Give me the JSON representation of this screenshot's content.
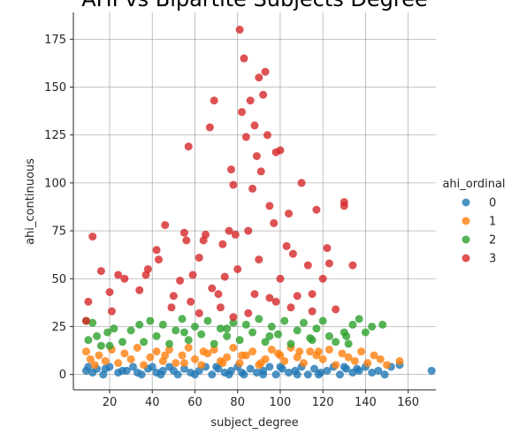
{
  "chart_data": {
    "type": "scatter",
    "title": "AHI vs Bipartite Subjects Degree",
    "xlabel": "subject_degree",
    "ylabel": "ahi_continuous",
    "xlim": [
      3,
      173
    ],
    "ylim": [
      -8,
      189
    ],
    "x_ticks": [
      20,
      40,
      60,
      80,
      100,
      120,
      140,
      160
    ],
    "y_ticks": [
      0,
      25,
      50,
      75,
      100,
      125,
      150,
      175
    ],
    "grid": true,
    "legend": {
      "title": "ahi_ordinal",
      "placement": "right",
      "entries": [
        "0",
        "1",
        "2",
        "3"
      ]
    },
    "colors": [
      "#1f77b4",
      "#ff7f0e",
      "#2ca02c",
      "#d62728"
    ],
    "series": [
      {
        "name": "0",
        "points": [
          [
            9,
            2
          ],
          [
            12,
            1
          ],
          [
            14,
            3
          ],
          [
            17,
            0
          ],
          [
            20,
            4
          ],
          [
            24,
            1
          ],
          [
            28,
            2
          ],
          [
            31,
            4
          ],
          [
            35,
            0
          ],
          [
            38,
            3
          ],
          [
            42,
            1
          ],
          [
            45,
            2
          ],
          [
            48,
            4
          ],
          [
            52,
            0
          ],
          [
            55,
            3
          ],
          [
            58,
            1
          ],
          [
            62,
            2
          ],
          [
            65,
            4
          ],
          [
            68,
            0
          ],
          [
            71,
            3
          ],
          [
            74,
            1
          ],
          [
            77,
            2
          ],
          [
            80,
            4
          ],
          [
            83,
            0
          ],
          [
            86,
            3
          ],
          [
            89,
            1
          ],
          [
            92,
            2
          ],
          [
            95,
            4
          ],
          [
            98,
            0
          ],
          [
            101,
            3
          ],
          [
            104,
            1
          ],
          [
            107,
            2
          ],
          [
            110,
            4
          ],
          [
            113,
            0
          ],
          [
            116,
            3
          ],
          [
            119,
            1
          ],
          [
            122,
            2
          ],
          [
            125,
            4
          ],
          [
            128,
            0
          ],
          [
            131,
            3
          ],
          [
            134,
            1
          ],
          [
            137,
            2
          ],
          [
            140,
            4
          ],
          [
            143,
            1
          ],
          [
            146,
            2
          ],
          [
            149,
            0
          ],
          [
            152,
            4
          ],
          [
            156,
            5
          ],
          [
            171,
            2
          ],
          [
            44,
            0
          ],
          [
            60,
            0
          ],
          [
            76,
            0
          ],
          [
            92,
            0
          ],
          [
            108,
            0
          ],
          [
            40,
            4
          ],
          [
            70,
            4
          ],
          [
            100,
            4
          ],
          [
            130,
            4
          ],
          [
            10,
            4
          ],
          [
            18,
            3
          ],
          [
            26,
            2
          ],
          [
            33,
            1
          ],
          [
            50,
            2
          ],
          [
            82,
            1
          ],
          [
            118,
            0
          ],
          [
            136,
            3
          ]
        ]
      },
      {
        "name": "1",
        "points": [
          [
            9,
            12
          ],
          [
            11,
            8
          ],
          [
            13,
            5
          ],
          [
            15,
            10
          ],
          [
            18,
            7
          ],
          [
            21,
            13
          ],
          [
            24,
            6
          ],
          [
            27,
            11
          ],
          [
            30,
            8
          ],
          [
            33,
            14
          ],
          [
            36,
            5
          ],
          [
            39,
            9
          ],
          [
            42,
            12
          ],
          [
            45,
            7
          ],
          [
            48,
            13
          ],
          [
            51,
            6
          ],
          [
            54,
            10
          ],
          [
            57,
            14
          ],
          [
            60,
            8
          ],
          [
            63,
            5
          ],
          [
            66,
            11
          ],
          [
            69,
            13
          ],
          [
            72,
            7
          ],
          [
            75,
            9
          ],
          [
            78,
            14
          ],
          [
            81,
            6
          ],
          [
            84,
            10
          ],
          [
            87,
            12
          ],
          [
            90,
            5
          ],
          [
            93,
            8
          ],
          [
            96,
            13
          ],
          [
            99,
            11
          ],
          [
            102,
            7
          ],
          [
            105,
            14
          ],
          [
            108,
            9
          ],
          [
            111,
            6
          ],
          [
            114,
            12
          ],
          [
            117,
            10
          ],
          [
            120,
            8
          ],
          [
            123,
            13
          ],
          [
            126,
            5
          ],
          [
            129,
            11
          ],
          [
            132,
            9
          ],
          [
            135,
            7
          ],
          [
            138,
            12
          ],
          [
            141,
            6
          ],
          [
            144,
            10
          ],
          [
            147,
            8
          ],
          [
            150,
            5
          ],
          [
            156,
            7
          ],
          [
            46,
            10
          ],
          [
            64,
            12
          ],
          [
            82,
            10
          ],
          [
            100,
            10
          ],
          [
            118,
            12
          ],
          [
            55,
            6
          ],
          [
            73,
            6
          ],
          [
            91,
            6
          ],
          [
            109,
            12
          ]
        ]
      },
      {
        "name": "2",
        "points": [
          [
            9,
            28
          ],
          [
            10,
            18
          ],
          [
            12,
            27
          ],
          [
            14,
            20
          ],
          [
            16,
            15
          ],
          [
            19,
            22
          ],
          [
            22,
            24
          ],
          [
            26,
            17
          ],
          [
            30,
            23
          ],
          [
            34,
            26
          ],
          [
            36,
            17
          ],
          [
            39,
            28
          ],
          [
            42,
            20
          ],
          [
            45,
            26
          ],
          [
            48,
            16
          ],
          [
            51,
            23
          ],
          [
            54,
            29
          ],
          [
            57,
            18
          ],
          [
            60,
            25
          ],
          [
            63,
            21
          ],
          [
            66,
            28
          ],
          [
            69,
            16
          ],
          [
            72,
            24
          ],
          [
            75,
            20
          ],
          [
            78,
            27
          ],
          [
            81,
            18
          ],
          [
            84,
            26
          ],
          [
            87,
            22
          ],
          [
            90,
            29
          ],
          [
            93,
            17
          ],
          [
            96,
            25
          ],
          [
            99,
            21
          ],
          [
            102,
            28
          ],
          [
            105,
            16
          ],
          [
            108,
            23
          ],
          [
            111,
            27
          ],
          [
            114,
            19
          ],
          [
            117,
            24
          ],
          [
            120,
            28
          ],
          [
            123,
            20
          ],
          [
            126,
            17
          ],
          [
            130,
            22
          ],
          [
            134,
            26
          ],
          [
            137,
            29
          ],
          [
            140,
            22
          ],
          [
            143,
            25
          ],
          [
            148,
            26
          ],
          [
            20,
            15
          ],
          [
            132,
            16
          ],
          [
            131,
            20
          ],
          [
            55,
            22
          ],
          [
            75,
            24
          ],
          [
            95,
            20
          ],
          [
            115,
            18
          ]
        ]
      },
      {
        "name": "3",
        "points": [
          [
            12,
            72
          ],
          [
            10,
            38
          ],
          [
            9,
            28
          ],
          [
            16,
            54
          ],
          [
            20,
            43
          ],
          [
            21,
            33
          ],
          [
            24,
            52
          ],
          [
            27,
            50
          ],
          [
            34,
            44
          ],
          [
            37,
            52
          ],
          [
            38,
            55
          ],
          [
            42,
            65
          ],
          [
            43,
            60
          ],
          [
            46,
            78
          ],
          [
            49,
            35
          ],
          [
            50,
            41
          ],
          [
            53,
            49
          ],
          [
            55,
            74
          ],
          [
            56,
            70
          ],
          [
            57,
            119
          ],
          [
            59,
            52
          ],
          [
            62,
            61
          ],
          [
            64,
            70
          ],
          [
            65,
            73
          ],
          [
            67,
            129
          ],
          [
            69,
            143
          ],
          [
            71,
            42
          ],
          [
            73,
            68
          ],
          [
            74,
            51
          ],
          [
            76,
            75
          ],
          [
            77,
            107
          ],
          [
            78,
            99
          ],
          [
            79,
            73
          ],
          [
            81,
            180
          ],
          [
            82,
            137
          ],
          [
            83,
            165
          ],
          [
            84,
            124
          ],
          [
            85,
            75
          ],
          [
            86,
            143
          ],
          [
            87,
            97
          ],
          [
            88,
            130
          ],
          [
            89,
            114
          ],
          [
            90,
            155
          ],
          [
            91,
            106
          ],
          [
            92,
            146
          ],
          [
            93,
            158
          ],
          [
            94,
            125
          ],
          [
            95,
            88
          ],
          [
            97,
            79
          ],
          [
            98,
            116
          ],
          [
            100,
            117
          ],
          [
            100,
            50
          ],
          [
            103,
            67
          ],
          [
            104,
            84
          ],
          [
            106,
            63
          ],
          [
            108,
            41
          ],
          [
            110,
            100
          ],
          [
            113,
            57
          ],
          [
            115,
            33
          ],
          [
            117,
            86
          ],
          [
            120,
            50
          ],
          [
            122,
            66
          ],
          [
            123,
            58
          ],
          [
            126,
            34
          ],
          [
            130,
            90
          ],
          [
            130,
            88
          ],
          [
            134,
            57
          ],
          [
            98,
            38
          ],
          [
            88,
            42
          ],
          [
            78,
            30
          ],
          [
            68,
            45
          ],
          [
            58,
            38
          ],
          [
            80,
            55
          ],
          [
            90,
            60
          ],
          [
            72,
            35
          ],
          [
            85,
            32
          ],
          [
            95,
            40
          ],
          [
            105,
            35
          ],
          [
            62,
            32
          ],
          [
            115,
            42
          ]
        ]
      }
    ]
  }
}
